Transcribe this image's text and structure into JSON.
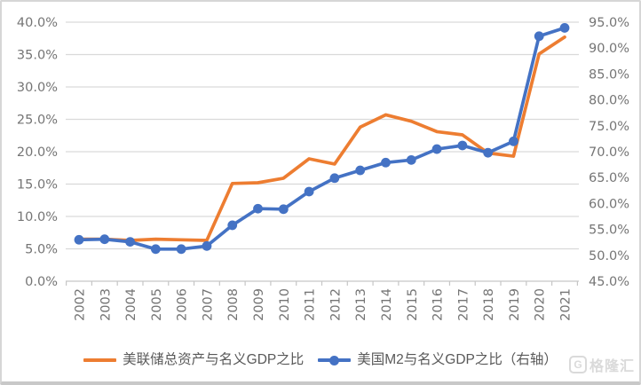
{
  "chart_data": {
    "type": "line",
    "categories": [
      "2002",
      "2003",
      "2004",
      "2005",
      "2006",
      "2007",
      "2008",
      "2009",
      "2010",
      "2011",
      "2012",
      "2013",
      "2014",
      "2015",
      "2016",
      "2017",
      "2018",
      "2019",
      "2020",
      "2021"
    ],
    "series": [
      {
        "name": "美联储总资产与名义GDP之比",
        "axis": "left",
        "color": "#ED7D31",
        "marker": "none",
        "values": [
          6.5,
          6.5,
          6.3,
          6.5,
          6.4,
          6.3,
          15.1,
          15.2,
          15.9,
          18.9,
          18.1,
          23.8,
          25.7,
          24.7,
          23.1,
          22.6,
          19.8,
          19.3,
          35.1,
          37.7
        ]
      },
      {
        "name": "美国M2与名义GDP之比（右轴）",
        "axis": "right",
        "color": "#4472C4",
        "marker": "circle",
        "values": [
          53.0,
          53.1,
          52.6,
          51.2,
          51.2,
          51.8,
          55.8,
          59.0,
          58.9,
          62.3,
          64.9,
          66.4,
          67.9,
          68.4,
          70.5,
          71.2,
          69.8,
          72.0,
          92.3,
          93.9
        ]
      }
    ],
    "left_axis": {
      "min": 0,
      "max": 40,
      "step": 5,
      "tick_labels": [
        "0.0%",
        "5.0%",
        "10.0%",
        "15.0%",
        "20.0%",
        "25.0%",
        "30.0%",
        "35.0%",
        "40.0%"
      ]
    },
    "right_axis": {
      "min": 45,
      "max": 95,
      "step": 5,
      "tick_labels": [
        "45.0%",
        "50.0%",
        "55.0%",
        "60.0%",
        "65.0%",
        "70.0%",
        "75.0%",
        "80.0%",
        "85.0%",
        "90.0%",
        "95.0%"
      ]
    },
    "grid": true,
    "grid_color": "#D9D9D9",
    "axis_color": "#C6C6C6",
    "label_color": "#757575",
    "legend_position": "bottom",
    "title": "",
    "xlabel": "",
    "ylabel": ""
  },
  "watermark": {
    "text": "格隆汇",
    "icon": "gelonghui-logo",
    "color": "#dadada"
  }
}
